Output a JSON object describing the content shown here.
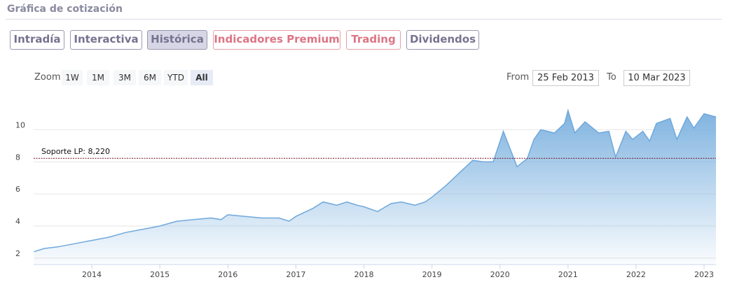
{
  "header": {
    "title": "Gráfica de cotización"
  },
  "tabs": [
    "Intradía",
    "Interactiva",
    "Histórica",
    "Indicadores Premium",
    "Trading",
    "Dividendos"
  ],
  "range_selector": {
    "zoom_label": "Zoom",
    "buttons": [
      "1W",
      "1M",
      "3M",
      "6M",
      "YTD",
      "All"
    ],
    "from_label": "From",
    "from": "25 Feb 2013",
    "to_label": "To",
    "to": "10 Mar 2023"
  },
  "chart_data": {
    "type": "area",
    "color": "#6fa8dc",
    "x": [
      2013.15,
      2013.3,
      2013.5,
      2013.75,
      2014.0,
      2014.25,
      2014.5,
      2014.75,
      2015.0,
      2015.25,
      2015.5,
      2015.75,
      2015.9,
      2016.0,
      2016.25,
      2016.5,
      2016.75,
      2016.9,
      2017.0,
      2017.25,
      2017.4,
      2017.6,
      2017.75,
      2017.9,
      2018.0,
      2018.2,
      2018.4,
      2018.55,
      2018.75,
      2018.9,
      2019.0,
      2019.2,
      2019.4,
      2019.6,
      2019.75,
      2019.9,
      2020.05,
      2020.15,
      2020.25,
      2020.4,
      2020.5,
      2020.6,
      2020.8,
      2020.95,
      2021.0,
      2021.1,
      2021.25,
      2021.45,
      2021.6,
      2021.7,
      2021.85,
      2021.95,
      2022.1,
      2022.2,
      2022.3,
      2022.5,
      2022.6,
      2022.75,
      2022.85,
      2023.0,
      2023.175
    ],
    "values": [
      2.4,
      2.6,
      2.7,
      2.9,
      3.1,
      3.3,
      3.6,
      3.8,
      4.0,
      4.3,
      4.4,
      4.5,
      4.4,
      4.7,
      4.6,
      4.5,
      4.5,
      4.3,
      4.6,
      5.1,
      5.5,
      5.3,
      5.5,
      5.3,
      5.2,
      4.9,
      5.4,
      5.5,
      5.3,
      5.5,
      5.8,
      6.5,
      7.3,
      8.1,
      8.0,
      8.0,
      9.9,
      8.8,
      7.7,
      8.2,
      9.4,
      10.0,
      9.8,
      10.4,
      11.2,
      9.8,
      10.5,
      9.8,
      9.9,
      8.3,
      9.9,
      9.4,
      9.9,
      9.3,
      10.4,
      10.7,
      9.4,
      10.8,
      10.1,
      11.0,
      10.8
    ],
    "xlim": [
      2013.145,
      2023.175
    ],
    "ylim": [
      1.6,
      12.2
    ],
    "xticks": [
      2014,
      2015,
      2016,
      2017,
      2018,
      2019,
      2020,
      2021,
      2022,
      2023
    ],
    "yticks": [
      2,
      4,
      6,
      8,
      10
    ],
    "grid": true,
    "support_line": {
      "label": "Soporte LP: 8,220",
      "value": 8.22
    }
  }
}
